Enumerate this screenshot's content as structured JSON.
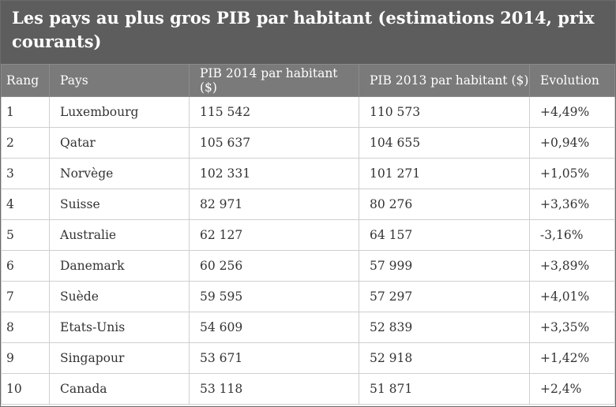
{
  "title": "Les pays au plus gros PIB par habitant (estimations 2014, prix courants)",
  "columns": [
    "Rang",
    "Pays",
    "PIB 2014 par habitant ($)",
    "PIB 2013 par habitant ($)",
    "Evolution"
  ],
  "rows": [
    [
      "1",
      "Luxembourg",
      "115 542",
      "110 573",
      "+4,49%"
    ],
    [
      "2",
      "Qatar",
      "105 637",
      "104 655",
      "+0,94%"
    ],
    [
      "3",
      "Norvège",
      "102 331",
      "101 271",
      "+1,05%"
    ],
    [
      "4",
      "Suisse",
      "82 971",
      "80 276",
      "+3,36%"
    ],
    [
      "5",
      "Australie",
      "62 127",
      "64 157",
      "-3,16%"
    ],
    [
      "6",
      "Danemark",
      "60 256",
      "57 999",
      "+3,89%"
    ],
    [
      "7",
      "Suède",
      "59 595",
      "57 297",
      "+4,01%"
    ],
    [
      "8",
      "Etats-Unis",
      "54 609",
      "52 839",
      "+3,35%"
    ],
    [
      "9",
      "Singapour",
      "53 671",
      "52 918",
      "+1,42%"
    ],
    [
      "10",
      "Canada",
      "53 118",
      "51 871",
      "+2,4%"
    ]
  ]
}
